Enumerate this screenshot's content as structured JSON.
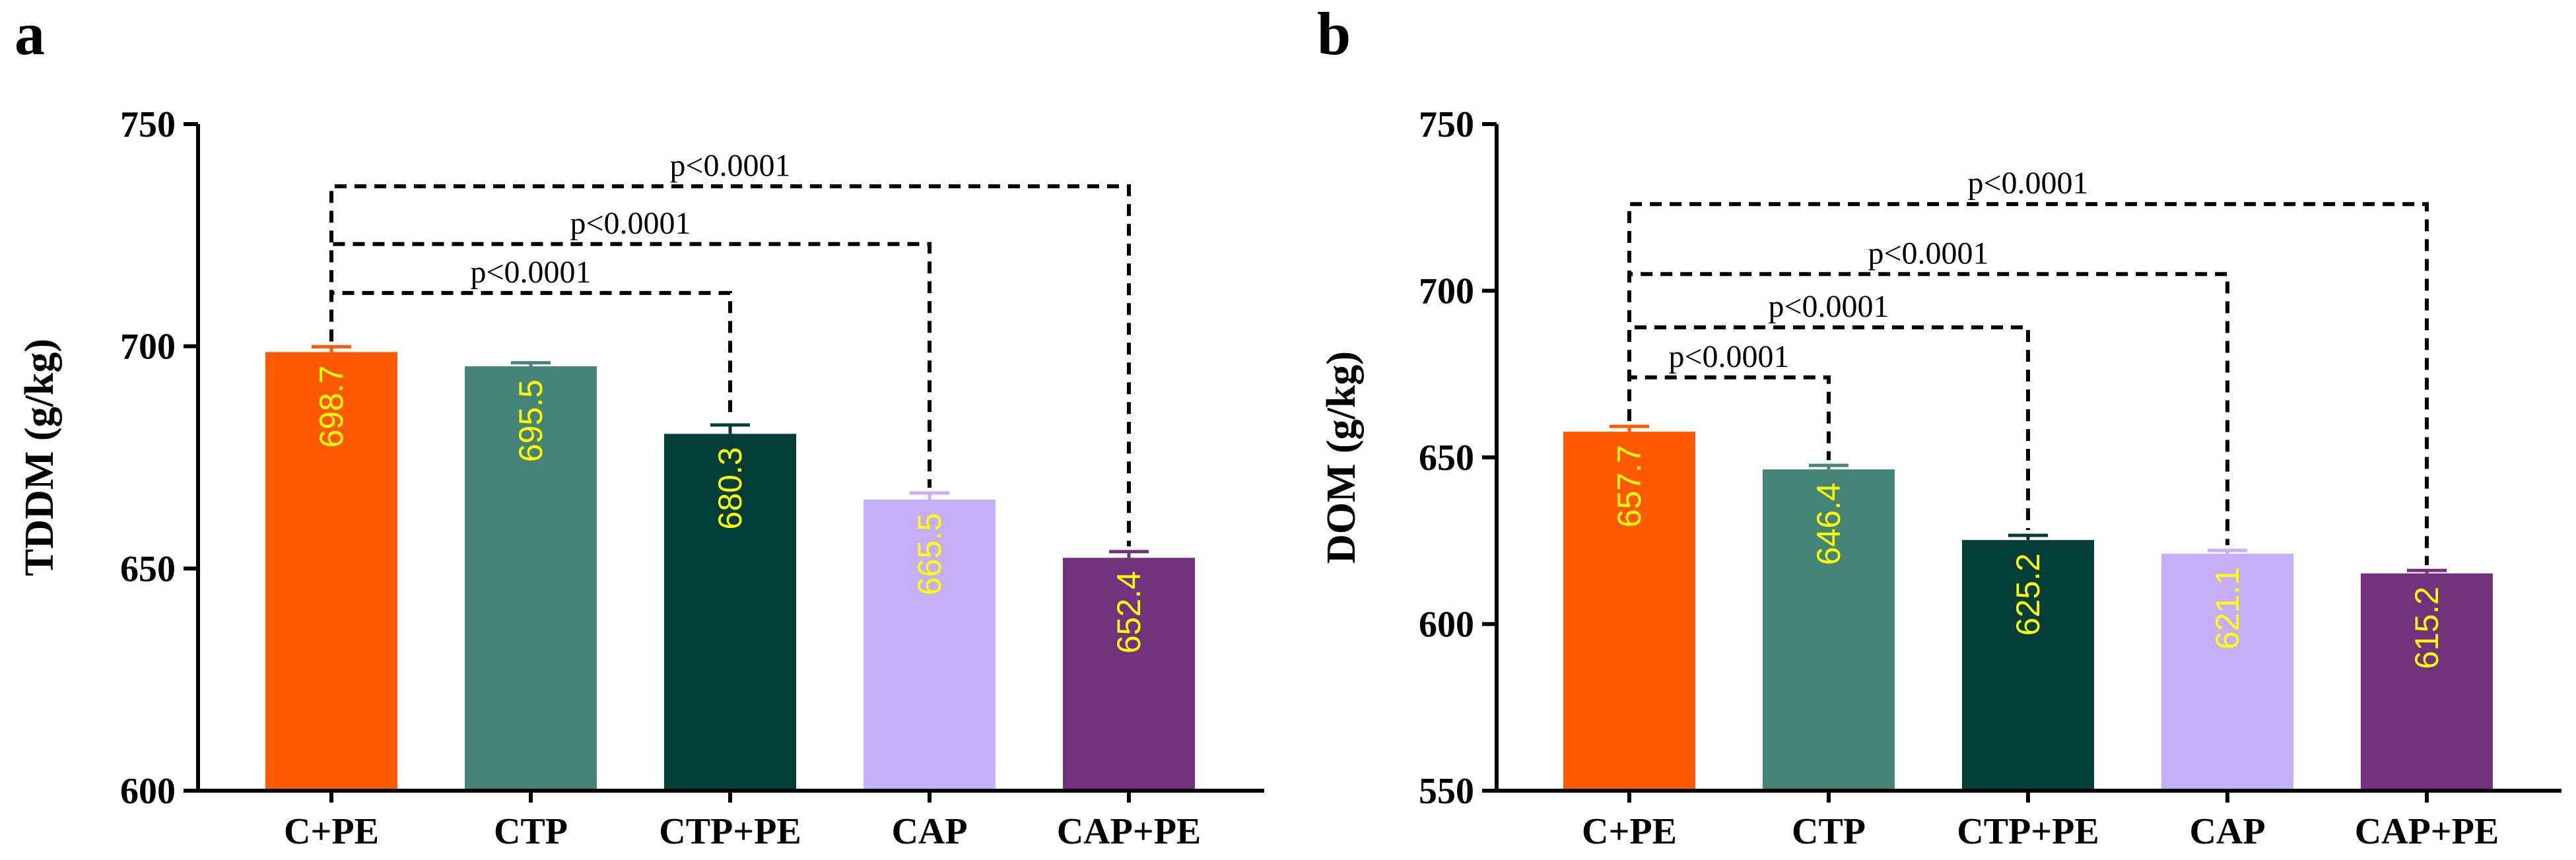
{
  "chart_data": [
    {
      "type": "bar",
      "panel_label": "a",
      "title": "",
      "xlabel": "",
      "ylabel": "TDDM (g/kg)",
      "ylim": [
        600,
        750
      ],
      "yticks": [
        600,
        650,
        700,
        750
      ],
      "categories": [
        "C+PE",
        "CTP",
        "CTP+PE",
        "CAP",
        "CAP+PE"
      ],
      "values": [
        698.7,
        695.5,
        680.3,
        665.5,
        652.4
      ],
      "errors": [
        1.2,
        0.8,
        2.0,
        1.5,
        1.4
      ],
      "bar_labels": [
        "698.7",
        "695.5",
        "680.3",
        "665.5",
        "652.4"
      ],
      "colors": [
        "#FF5A00",
        "#468576",
        "#033D38",
        "#C6AEFA",
        "#73307D"
      ],
      "comparisons": [
        {
          "from": 0,
          "to": 2,
          "label": "p<0.0001",
          "level": 712
        },
        {
          "from": 0,
          "to": 3,
          "label": "p<0.0001",
          "level": 723
        },
        {
          "from": 0,
          "to": 4,
          "label": "p<0.0001",
          "level": 736
        }
      ]
    },
    {
      "type": "bar",
      "panel_label": "b",
      "title": "",
      "xlabel": "",
      "ylabel": "DOM (g/kg)",
      "ylim": [
        550,
        750
      ],
      "yticks": [
        550,
        600,
        650,
        700,
        750
      ],
      "categories": [
        "C+PE",
        "CTP",
        "CTP+PE",
        "CAP",
        "CAP+PE"
      ],
      "values": [
        657.7,
        646.4,
        625.2,
        621.1,
        615.2
      ],
      "errors": [
        1.6,
        1.2,
        1.4,
        1.0,
        0.9
      ],
      "bar_labels": [
        "657.7",
        "646.4",
        "625.2",
        "621.1",
        "615.2"
      ],
      "colors": [
        "#FF5A00",
        "#468576",
        "#033D38",
        "#C6AEFA",
        "#73307D"
      ],
      "comparisons": [
        {
          "from": 0,
          "to": 1,
          "label": "p<0.0001",
          "level": 674
        },
        {
          "from": 0,
          "to": 2,
          "label": "p<0.0001",
          "level": 689
        },
        {
          "from": 0,
          "to": 3,
          "label": "p<0.0001",
          "level": 705
        },
        {
          "from": 0,
          "to": 4,
          "label": "p<0.0001",
          "level": 726
        }
      ]
    }
  ]
}
